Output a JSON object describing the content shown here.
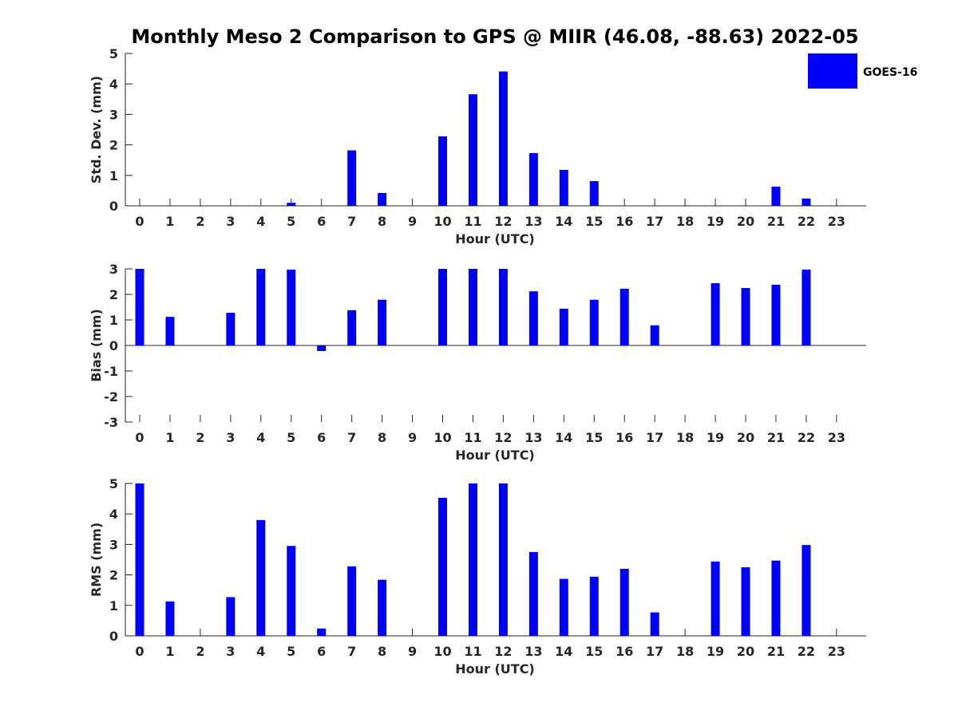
{
  "chart_data": {
    "type": "bar",
    "title": "Monthly Meso 2 Comparison to GPS @ MIIR (46.08, -88.63) 2022-05",
    "legend": {
      "label": "GOES-16",
      "position": "top-right"
    },
    "bar_color": "#0000FF",
    "categories": [
      "0",
      "1",
      "2",
      "3",
      "4",
      "5",
      "6",
      "7",
      "8",
      "9",
      "10",
      "11",
      "12",
      "13",
      "14",
      "15",
      "16",
      "17",
      "18",
      "19",
      "20",
      "21",
      "22",
      "23"
    ],
    "panels": [
      {
        "ylabel": "Std. Dev. (mm)",
        "xlabel": "Hour (UTC)",
        "ylim": [
          0,
          5
        ],
        "yticks": [
          "0",
          "1",
          "2",
          "3",
          "4",
          "5"
        ],
        "values": [
          null,
          null,
          null,
          null,
          null,
          0.1,
          null,
          1.82,
          0.42,
          null,
          2.28,
          3.66,
          4.41,
          1.73,
          1.18,
          0.81,
          null,
          null,
          null,
          null,
          null,
          0.63,
          0.24,
          null
        ]
      },
      {
        "ylabel": "Bias (mm)",
        "xlabel": "Hour (UTC)",
        "ylim": [
          -3,
          3
        ],
        "yticks": [
          "-3",
          "-2",
          "-1",
          "0",
          "1",
          "2",
          "3"
        ],
        "values": [
          3.0,
          1.12,
          null,
          1.28,
          3.0,
          2.97,
          -0.22,
          1.38,
          1.79,
          null,
          3.0,
          3.0,
          3.0,
          2.12,
          1.44,
          1.79,
          2.22,
          0.79,
          null,
          2.44,
          2.25,
          2.38,
          2.97,
          null
        ]
      },
      {
        "ylabel": "RMS (mm)",
        "xlabel": "Hour (UTC)",
        "ylim": [
          0,
          5
        ],
        "yticks": [
          "0",
          "1",
          "2",
          "3",
          "4",
          "5"
        ],
        "values": [
          5.0,
          1.13,
          null,
          1.27,
          3.8,
          2.95,
          0.24,
          2.28,
          1.84,
          null,
          4.53,
          5.0,
          5.0,
          2.75,
          1.87,
          1.94,
          2.2,
          0.77,
          null,
          2.44,
          2.25,
          2.47,
          2.98,
          null
        ]
      }
    ]
  }
}
